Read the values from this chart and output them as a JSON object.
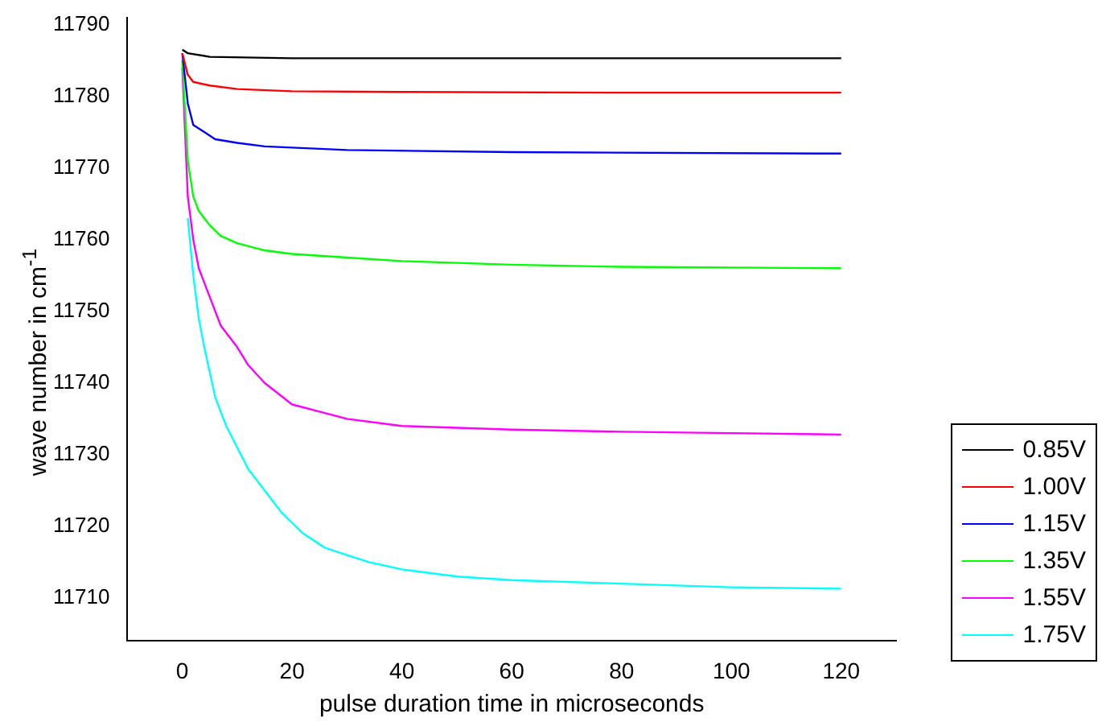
{
  "chart_data": {
    "type": "line",
    "xlabel": "pulse duration time in microseconds",
    "ylabel": "wave number in cm$^{-1}$",
    "xlim": [
      -10,
      130
    ],
    "xticks": [
      0,
      20,
      40,
      60,
      80,
      100,
      120
    ],
    "ylim": [
      11704,
      11791
    ],
    "yticks": [
      11710,
      11720,
      11730,
      11740,
      11750,
      11760,
      11770,
      11780,
      11790
    ],
    "grid": false,
    "legend": "bottom right",
    "marker": "none",
    "line_style": "solid",
    "series": [
      {
        "name": "0.85V",
        "color": "#000000",
        "x": [
          0,
          1,
          5,
          20,
          60,
          120
        ],
        "values": [
          11786.5,
          11786,
          11785.5,
          11785.3,
          11785.3,
          11785.3
        ]
      },
      {
        "name": "1.00V",
        "color": "#ff0000",
        "x": [
          0,
          1,
          2,
          5,
          10,
          20,
          40,
          80,
          120
        ],
        "values": [
          11786,
          11783,
          11782,
          11781.5,
          11781,
          11780.7,
          11780.6,
          11780.5,
          11780.5
        ]
      },
      {
        "name": "1.15V",
        "color": "#0000ff",
        "x": [
          0,
          1,
          2,
          4,
          6,
          10,
          15,
          30,
          60,
          120
        ],
        "values": [
          11786,
          11779,
          11776,
          11775,
          11774,
          11773.5,
          11773,
          11772.5,
          11772.2,
          11772
        ]
      },
      {
        "name": "1.35V",
        "color": "#00ff00",
        "x": [
          0,
          1,
          2,
          3,
          5,
          7,
          10,
          15,
          20,
          30,
          40,
          60,
          80,
          120
        ],
        "values": [
          11785,
          11771,
          11766,
          11764,
          11762,
          11760.5,
          11759.5,
          11758.5,
          11758,
          11757.5,
          11757,
          11756.5,
          11756.2,
          11756
        ]
      },
      {
        "name": "1.55V",
        "color": "#ff00ff",
        "x": [
          0,
          1,
          2,
          3,
          5,
          7,
          10,
          12,
          15,
          20,
          25,
          30,
          40,
          60,
          80,
          100,
          120
        ],
        "values": [
          11784,
          11766,
          11760,
          11756,
          11752,
          11748,
          11745,
          11742.5,
          11740,
          11737,
          11736,
          11735,
          11734,
          11733.5,
          11733.2,
          11733,
          11732.8
        ]
      },
      {
        "name": "1.75V",
        "color": "#00ffff",
        "x": [
          1,
          2,
          3,
          4,
          6,
          8,
          10,
          12,
          14,
          18,
          22,
          26,
          30,
          34,
          40,
          50,
          60,
          80,
          100,
          120
        ],
        "values": [
          11763,
          11755,
          11749,
          11745,
          11738,
          11734,
          11731,
          11728,
          11726,
          11722,
          11719,
          11717,
          11716,
          11715,
          11714,
          11713,
          11712.5,
          11712,
          11711.5,
          11711.3
        ]
      }
    ]
  }
}
